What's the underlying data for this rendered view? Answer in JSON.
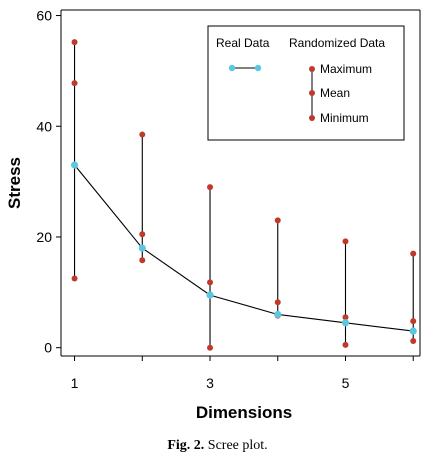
{
  "chart_data": {
    "type": "line",
    "x": [
      1,
      2,
      3,
      4,
      5,
      6
    ],
    "xticks": [
      1,
      3,
      5
    ],
    "yticks": [
      0,
      20,
      40,
      60
    ],
    "xlim": [
      0.8,
      6.1
    ],
    "ylim": [
      -1.5,
      61
    ],
    "xlabel": "Dimensions",
    "ylabel": "Stress",
    "grid": false,
    "legend_position": "top-right",
    "legend": {
      "real_title": "Real Data",
      "random_title": "Randomized Data",
      "maximum": "Maximum",
      "mean": "Mean",
      "minimum": "Minimum"
    },
    "series": [
      {
        "name": "Real Data",
        "values": [
          33.0,
          18.0,
          9.5,
          6.0,
          4.5,
          3.0
        ],
        "color": "#5bc8e0"
      }
    ],
    "randomized": {
      "maximum": [
        55.2,
        38.5,
        29.0,
        23.0,
        19.2,
        17.0
      ],
      "mean": [
        47.8,
        20.5,
        11.8,
        8.2,
        5.5,
        4.8
      ],
      "minimum": [
        12.5,
        15.8,
        0.0,
        5.8,
        0.5,
        1.2
      ],
      "color": "#c0392b"
    }
  },
  "caption": {
    "label": "Fig. 2.",
    "text": "Scree plot."
  }
}
